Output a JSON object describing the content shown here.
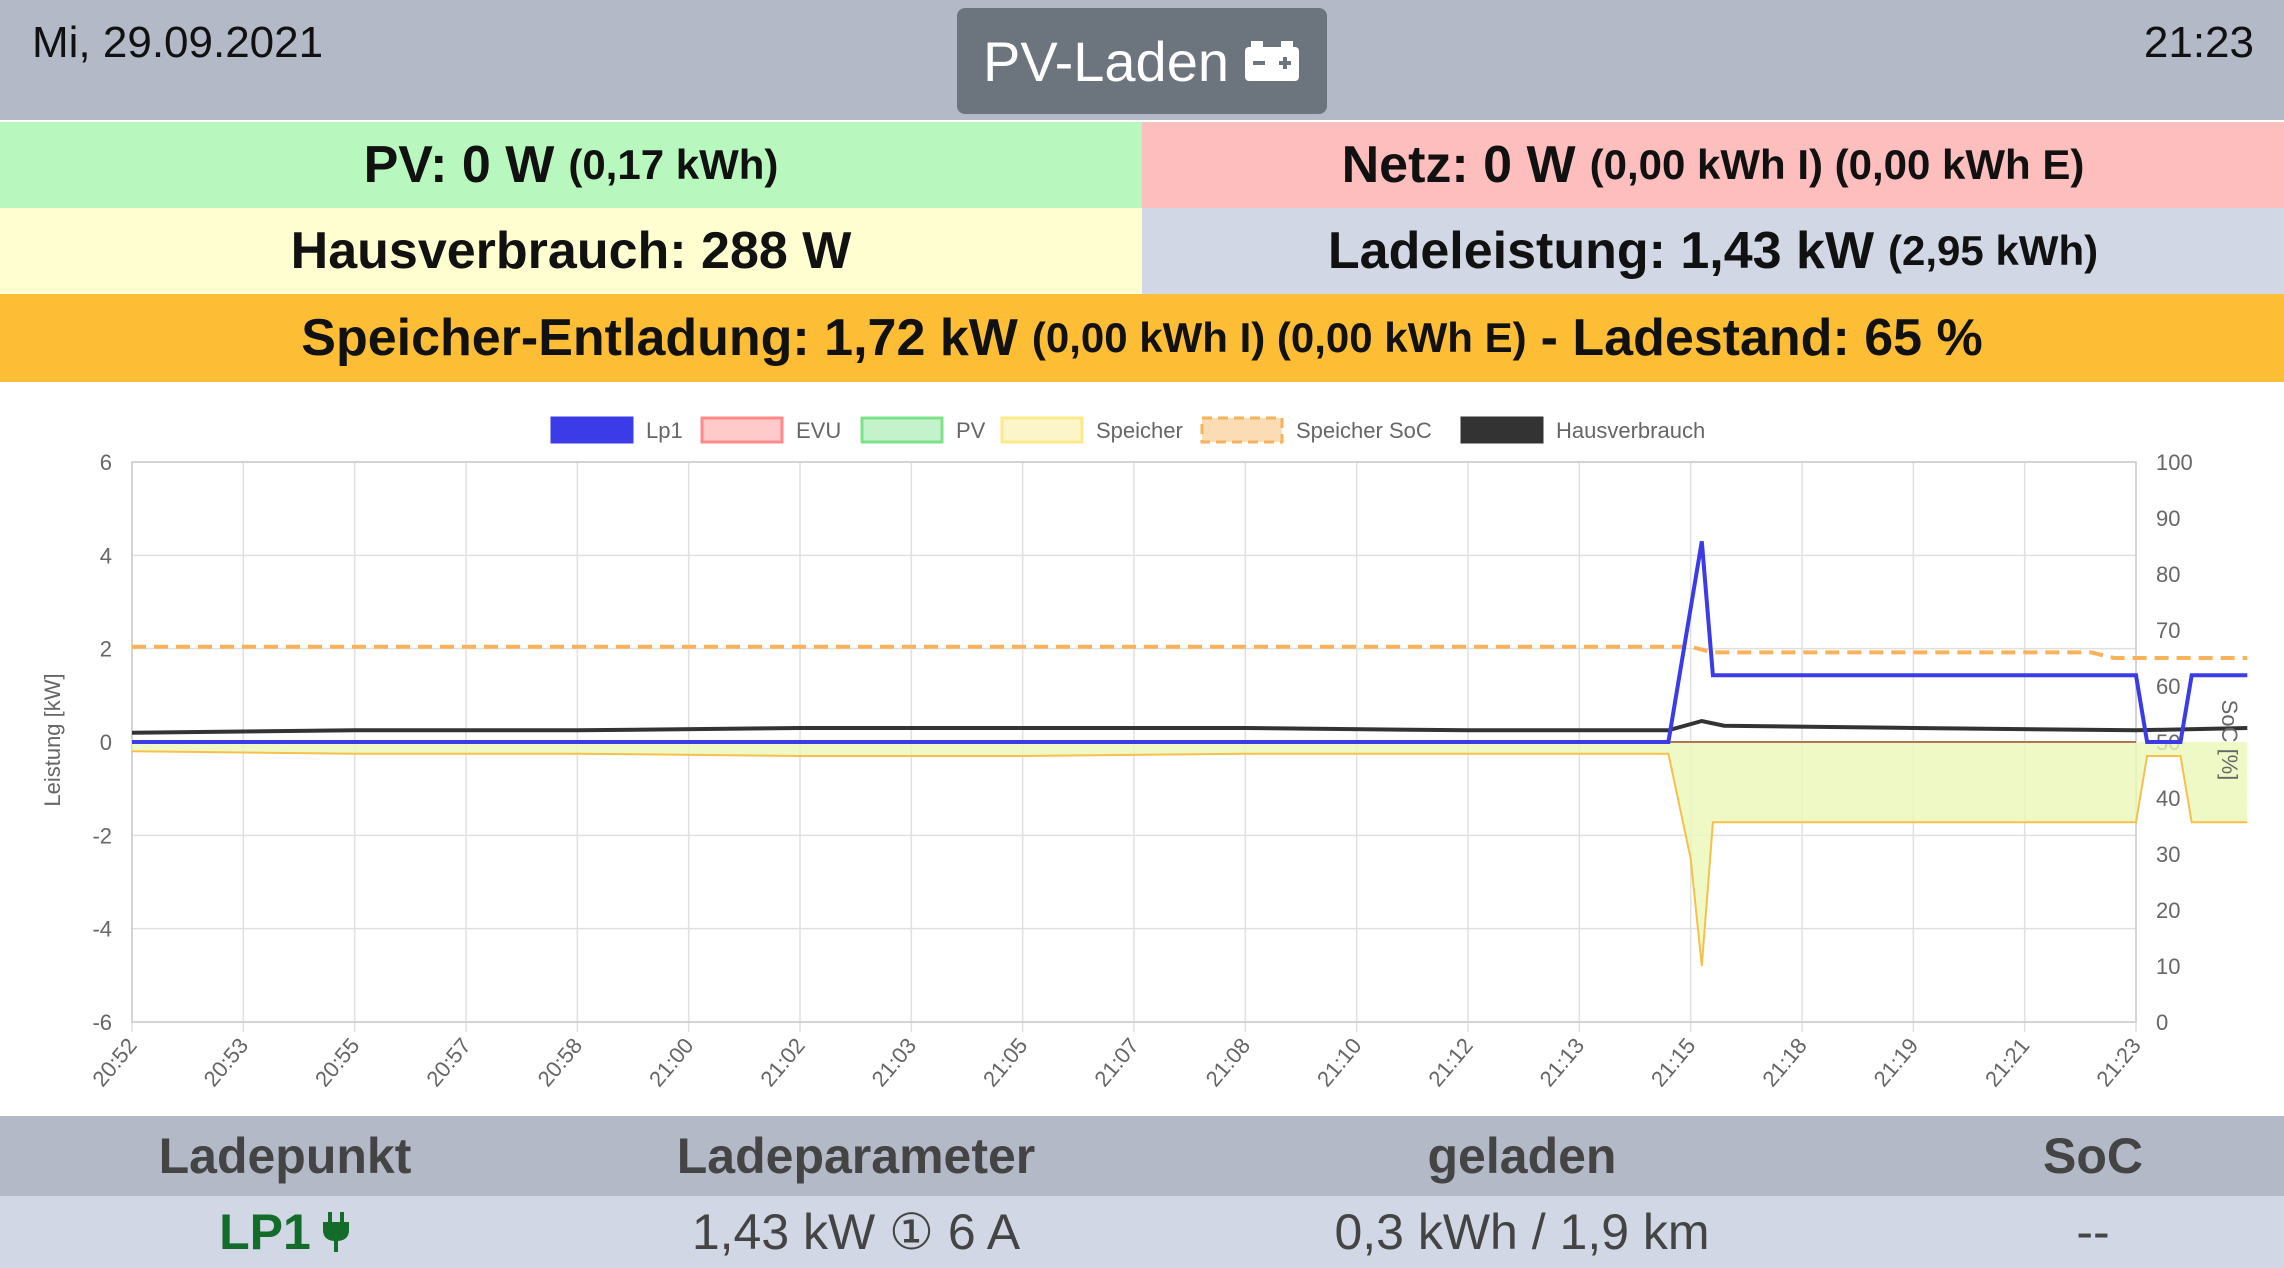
{
  "header": {
    "date": "Mi, 29.09.2021",
    "time": "21:23",
    "mode_label": "PV-Laden",
    "mode_icon": "car-battery-icon"
  },
  "status": {
    "pv_label": "PV: 0 W",
    "pv_energy": "(0,17 kWh)",
    "netz_label": "Netz: 0 W",
    "netz_energy": "(0,00 kWh I) (0,00 kWh E)",
    "haus_label": "Hausverbrauch: 288 W",
    "lade_label": "Ladeleistung: 1,43 kW",
    "lade_energy": "(2,95 kWh)",
    "speicher_label": "Speicher-Entladung: 1,72 kW",
    "speicher_energy": "(0,00 kWh I) (0,00 kWh E)",
    "speicher_soc": "- Ladestand: 65 %"
  },
  "colors": {
    "pv": "#b8f8be",
    "netz": "#ffbebe",
    "haus": "#fefed0",
    "lade": "#d1d7e5",
    "speicher": "#fdbd35",
    "lp1_line": "#3b3be8",
    "soc_line": "#f7b25a"
  },
  "chart_data": {
    "type": "line",
    "legend": [
      "Lp1",
      "EVU",
      "PV",
      "Speicher",
      "Speicher SoC",
      "Hausverbrauch"
    ],
    "legend_colors": [
      "#3b3be8",
      "#ff8a8a",
      "#7de38a",
      "#fbe98a",
      "#f7b25a",
      "#333333"
    ],
    "legend_position": "top",
    "ylabel": "Leistung [kW]",
    "y2label": "SoC [%]",
    "ylim": [
      -6,
      6
    ],
    "yticks": [
      "6",
      "4",
      "2",
      "0",
      "-2",
      "-4",
      "-6"
    ],
    "y2lim": [
      0,
      100
    ],
    "y2ticks": [
      "100",
      "90",
      "80",
      "70",
      "60",
      "50",
      "40",
      "30",
      "20",
      "10",
      "0"
    ],
    "x_ticks": [
      "20:52",
      "20:53",
      "20:55",
      "20:57",
      "20:58",
      "21:00",
      "21:02",
      "21:03",
      "21:05",
      "21:07",
      "21:08",
      "21:10",
      "21:12",
      "21:13",
      "21:15",
      "21:18",
      "21:19",
      "21:21",
      "21:23"
    ],
    "grid": true,
    "series": [
      {
        "name": "Lp1",
        "x": [
          0,
          13.8,
          14.1,
          14.2,
          18.0,
          18.1,
          18.4,
          18.5,
          19
        ],
        "y": [
          0,
          0,
          4.3,
          1.43,
          1.43,
          0,
          0,
          1.43,
          1.43
        ]
      },
      {
        "name": "Hausverbrauch",
        "x": [
          0,
          2,
          4,
          6,
          8,
          10,
          12,
          13.8,
          14.1,
          14.3,
          16,
          18,
          19
        ],
        "y": [
          0.2,
          0.25,
          0.25,
          0.3,
          0.3,
          0.3,
          0.25,
          0.25,
          0.45,
          0.35,
          0.3,
          0.25,
          0.3
        ]
      },
      {
        "name": "Speicher",
        "x": [
          0,
          2,
          4,
          6,
          8,
          10,
          12,
          13.8,
          14.0,
          14.1,
          14.2,
          18.0,
          18.1,
          18.4,
          18.5,
          19
        ],
        "y": [
          -0.2,
          -0.25,
          -0.25,
          -0.3,
          -0.3,
          -0.25,
          -0.25,
          -0.25,
          -2.5,
          -4.8,
          -1.72,
          -1.72,
          -0.3,
          -0.3,
          -1.72,
          -1.72
        ]
      },
      {
        "name": "Speicher SoC",
        "x": [
          0,
          14.0,
          14.2,
          17.6,
          17.8,
          19
        ],
        "y": [
          67,
          67,
          66,
          66,
          65,
          65
        ]
      }
    ]
  },
  "table": {
    "headers": [
      "Ladepunkt",
      "Ladeparameter",
      "geladen",
      "SoC"
    ],
    "rows": [
      {
        "ladepunkt": "LP1",
        "ladeparameter": "1,43 kW ① 6 A",
        "geladen": "0,3 kWh / 1,9 km",
        "soc": "--"
      }
    ]
  }
}
